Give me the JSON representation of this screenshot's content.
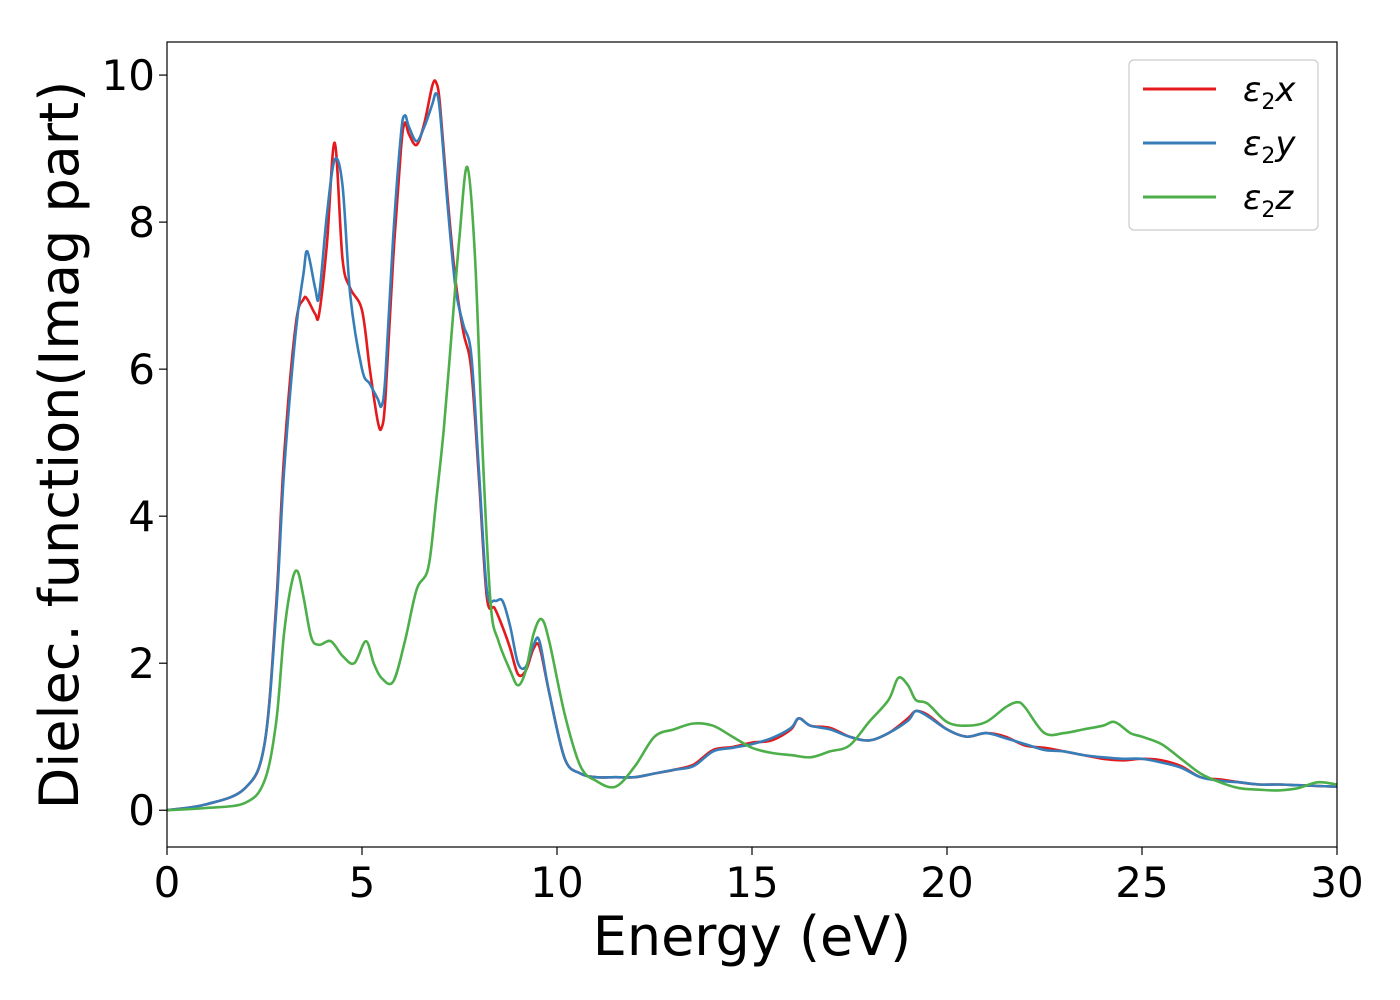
{
  "chart_data": {
    "type": "line",
    "xlabel": "Energy (eV)",
    "ylabel": "Dielec. function(Imag part)",
    "xlim": [
      0,
      30
    ],
    "ylim": [
      -0.5,
      10.45
    ],
    "xticks": [
      0,
      5,
      10,
      15,
      20,
      25,
      30
    ],
    "xtick_labels": [
      "0",
      "5",
      "10",
      "15",
      "20",
      "25",
      "30"
    ],
    "yticks": [
      0,
      2,
      4,
      6,
      8,
      10
    ],
    "ytick_labels": [
      "0",
      "2",
      "4",
      "6",
      "8",
      "10"
    ],
    "grid": false,
    "legend_position": "top-right",
    "series": [
      {
        "name": "ε2x",
        "name_main": "ε",
        "name_sub": "2",
        "name_tail": "x",
        "color": "#e41a1c",
        "x": [
          0,
          1,
          2,
          2.5,
          2.8,
          3.0,
          3.3,
          3.5,
          3.6,
          3.8,
          3.9,
          4.1,
          4.3,
          4.5,
          4.7,
          5.0,
          5.2,
          5.4,
          5.5,
          5.6,
          5.8,
          6.0,
          6.1,
          6.2,
          6.4,
          6.6,
          6.8,
          6.9,
          7.0,
          7.2,
          7.4,
          7.6,
          7.8,
          8.0,
          8.2,
          8.4,
          8.6,
          8.8,
          9.0,
          9.2,
          9.4,
          9.55,
          9.8,
          10.2,
          10.6,
          11.0,
          11.5,
          12.0,
          12.5,
          13.0,
          13.5,
          14.0,
          14.5,
          15.0,
          15.5,
          16.0,
          16.2,
          16.5,
          17.0,
          17.5,
          18.0,
          18.5,
          19.0,
          19.2,
          19.5,
          20.0,
          20.5,
          21.0,
          21.5,
          22.0,
          22.5,
          23.0,
          23.5,
          24.0,
          24.5,
          25.0,
          25.5,
          26.0,
          26.5,
          27.0,
          27.5,
          28.0,
          28.5,
          29.0,
          29.5,
          30.0
        ],
        "y": [
          0,
          0.08,
          0.3,
          0.9,
          2.8,
          4.8,
          6.6,
          6.95,
          6.95,
          6.75,
          6.75,
          7.7,
          9.08,
          7.5,
          7.1,
          6.8,
          6.0,
          5.3,
          5.2,
          5.6,
          7.5,
          9.0,
          9.35,
          9.2,
          9.05,
          9.35,
          9.85,
          9.9,
          9.6,
          8.3,
          7.2,
          6.5,
          6.0,
          4.5,
          2.9,
          2.75,
          2.5,
          2.2,
          1.85,
          1.9,
          2.2,
          2.22,
          1.6,
          0.7,
          0.5,
          0.45,
          0.45,
          0.45,
          0.5,
          0.55,
          0.62,
          0.82,
          0.86,
          0.92,
          0.95,
          1.1,
          1.25,
          1.15,
          1.12,
          1.0,
          0.95,
          1.05,
          1.25,
          1.35,
          1.3,
          1.1,
          1.0,
          1.05,
          1.0,
          0.88,
          0.85,
          0.8,
          0.75,
          0.7,
          0.68,
          0.7,
          0.68,
          0.6,
          0.45,
          0.42,
          0.38,
          0.35,
          0.35,
          0.34,
          0.33,
          0.32
        ]
      },
      {
        "name": "ε2y",
        "name_main": "ε",
        "name_sub": "2",
        "name_tail": "y",
        "color": "#377eb8",
        "x": [
          0,
          1,
          2,
          2.5,
          2.8,
          3.0,
          3.3,
          3.5,
          3.6,
          3.8,
          3.9,
          4.1,
          4.3,
          4.5,
          4.7,
          5.0,
          5.2,
          5.4,
          5.5,
          5.6,
          5.8,
          6.0,
          6.1,
          6.2,
          6.4,
          6.6,
          6.8,
          6.9,
          7.0,
          7.2,
          7.4,
          7.6,
          7.8,
          8.0,
          8.2,
          8.4,
          8.6,
          8.8,
          9.0,
          9.2,
          9.4,
          9.55,
          9.8,
          10.2,
          10.6,
          11.0,
          11.5,
          12.0,
          12.5,
          13.0,
          13.5,
          14.0,
          14.5,
          15.0,
          15.5,
          16.0,
          16.2,
          16.5,
          17.0,
          17.5,
          18.0,
          18.5,
          19.0,
          19.2,
          19.5,
          20.0,
          20.5,
          21.0,
          21.5,
          22.0,
          22.5,
          23.0,
          23.5,
          24.0,
          24.5,
          25.0,
          25.5,
          26.0,
          26.5,
          27.0,
          27.5,
          28.0,
          28.5,
          29.0,
          29.5,
          30.0
        ],
        "y": [
          0,
          0.08,
          0.3,
          0.9,
          2.7,
          4.6,
          6.5,
          7.3,
          7.6,
          7.1,
          7.0,
          8.1,
          8.85,
          8.5,
          7.0,
          6.0,
          5.8,
          5.6,
          5.5,
          5.9,
          7.8,
          9.2,
          9.45,
          9.3,
          9.1,
          9.3,
          9.6,
          9.75,
          9.5,
          8.2,
          7.1,
          6.6,
          6.2,
          4.6,
          3.0,
          2.85,
          2.85,
          2.5,
          2.0,
          1.95,
          2.25,
          2.3,
          1.6,
          0.7,
          0.5,
          0.45,
          0.45,
          0.45,
          0.5,
          0.55,
          0.6,
          0.8,
          0.85,
          0.9,
          0.98,
          1.12,
          1.25,
          1.15,
          1.1,
          1.0,
          0.95,
          1.05,
          1.22,
          1.35,
          1.28,
          1.1,
          1.0,
          1.05,
          0.98,
          0.9,
          0.82,
          0.8,
          0.75,
          0.72,
          0.7,
          0.7,
          0.65,
          0.58,
          0.45,
          0.4,
          0.38,
          0.35,
          0.35,
          0.34,
          0.33,
          0.32
        ]
      },
      {
        "name": "ε2z",
        "name_main": "ε",
        "name_sub": "2",
        "name_tail": "z",
        "color": "#4daf4a",
        "x": [
          0,
          1,
          2,
          2.5,
          2.8,
          3.0,
          3.2,
          3.35,
          3.5,
          3.7,
          3.9,
          4.2,
          4.5,
          4.8,
          5.1,
          5.3,
          5.5,
          5.8,
          6.1,
          6.4,
          6.7,
          6.9,
          7.1,
          7.3,
          7.5,
          7.7,
          7.9,
          8.1,
          8.3,
          8.5,
          8.8,
          9.0,
          9.2,
          9.4,
          9.6,
          9.8,
          10.2,
          10.6,
          11.0,
          11.5,
          12.0,
          12.5,
          13.0,
          13.5,
          14.0,
          14.5,
          15.0,
          15.5,
          16.0,
          16.5,
          17.0,
          17.5,
          18.0,
          18.5,
          18.75,
          19.0,
          19.2,
          19.5,
          20.0,
          20.5,
          21.0,
          21.5,
          21.8,
          22.0,
          22.5,
          23.0,
          23.5,
          24.0,
          24.3,
          24.7,
          25.0,
          25.5,
          26.0,
          26.5,
          27.0,
          27.5,
          28.0,
          28.5,
          29.0,
          29.5,
          30.0
        ],
        "y": [
          0,
          0.03,
          0.1,
          0.4,
          1.2,
          2.4,
          3.1,
          3.25,
          2.9,
          2.35,
          2.25,
          2.3,
          2.1,
          2.0,
          2.3,
          2.0,
          1.8,
          1.75,
          2.3,
          3.0,
          3.3,
          4.2,
          5.2,
          6.5,
          7.8,
          8.75,
          7.5,
          4.8,
          2.8,
          2.3,
          1.9,
          1.7,
          1.9,
          2.4,
          2.6,
          2.3,
          1.3,
          0.6,
          0.4,
          0.32,
          0.6,
          1.0,
          1.1,
          1.18,
          1.15,
          1.0,
          0.85,
          0.78,
          0.75,
          0.72,
          0.8,
          0.88,
          1.2,
          1.5,
          1.8,
          1.7,
          1.5,
          1.45,
          1.2,
          1.15,
          1.2,
          1.4,
          1.47,
          1.4,
          1.05,
          1.05,
          1.1,
          1.15,
          1.2,
          1.05,
          1.0,
          0.9,
          0.7,
          0.5,
          0.38,
          0.3,
          0.28,
          0.27,
          0.3,
          0.38,
          0.35
        ]
      }
    ]
  }
}
